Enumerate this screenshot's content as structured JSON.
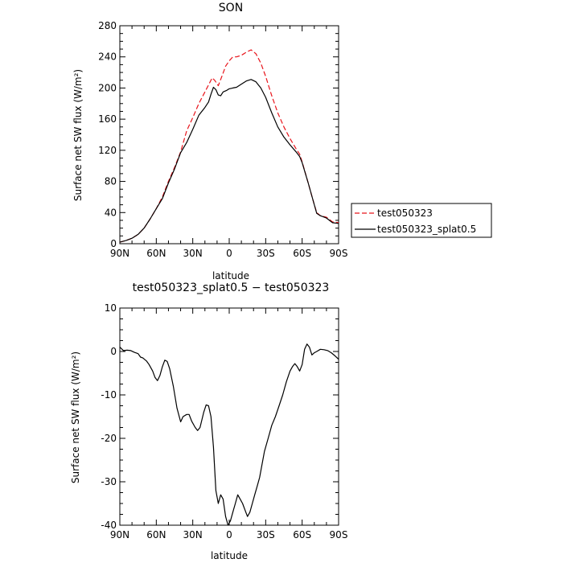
{
  "chart_data": [
    {
      "type": "line",
      "title": "SON",
      "xlabel": "latitude",
      "ylabel": "Surface net SW flux (W/m²)",
      "x_tick_labels": [
        "90N",
        "60N",
        "30N",
        "0",
        "30S",
        "60S",
        "90S"
      ],
      "x_tick_values": [
        90,
        60,
        30,
        0,
        -30,
        -60,
        -90
      ],
      "xlim": [
        90,
        -90
      ],
      "ylim": [
        0,
        280
      ],
      "y_ticks": [
        0,
        40,
        80,
        120,
        160,
        200,
        240,
        280
      ],
      "legend_position": "right",
      "series": [
        {
          "name": "test050323",
          "color": "#e8141b",
          "dash": "dashed",
          "points": [
            [
              90,
              2
            ],
            [
              85,
              4
            ],
            [
              80,
              7
            ],
            [
              75,
              12
            ],
            [
              70,
              20
            ],
            [
              65,
              32
            ],
            [
              60,
              45
            ],
            [
              55,
              60
            ],
            [
              50,
              80
            ],
            [
              45,
              98
            ],
            [
              40,
              118
            ],
            [
              35,
              145
            ],
            [
              30,
              162
            ],
            [
              25,
              180
            ],
            [
              20,
              195
            ],
            [
              16,
              207
            ],
            [
              14,
              213
            ],
            [
              12,
              210
            ],
            [
              9,
              203
            ],
            [
              6,
              215
            ],
            [
              3,
              228
            ],
            [
              0,
              235
            ],
            [
              -3,
              240
            ],
            [
              -6,
              240
            ],
            [
              -10,
              242
            ],
            [
              -14,
              246
            ],
            [
              -18,
              249
            ],
            [
              -22,
              244
            ],
            [
              -26,
              232
            ],
            [
              -30,
              215
            ],
            [
              -35,
              190
            ],
            [
              -40,
              168
            ],
            [
              -45,
              150
            ],
            [
              -50,
              135
            ],
            [
              -55,
              122
            ],
            [
              -58,
              115
            ],
            [
              -60,
              105
            ],
            [
              -65,
              78
            ],
            [
              -70,
              50
            ],
            [
              -72,
              40
            ],
            [
              -75,
              36
            ],
            [
              -80,
              34
            ],
            [
              -85,
              28
            ],
            [
              -90,
              27
            ]
          ]
        },
        {
          "name": "test050323_splat0.5",
          "color": "#000000",
          "dash": "solid",
          "points": [
            [
              90,
              2
            ],
            [
              85,
              4
            ],
            [
              80,
              7
            ],
            [
              75,
              12
            ],
            [
              70,
              20
            ],
            [
              65,
              32
            ],
            [
              60,
              45
            ],
            [
              55,
              58
            ],
            [
              50,
              78
            ],
            [
              45,
              96
            ],
            [
              40,
              117
            ],
            [
              35,
              130
            ],
            [
              30,
              147
            ],
            [
              25,
              165
            ],
            [
              20,
              175
            ],
            [
              17,
              182
            ],
            [
              15,
              192
            ],
            [
              13,
              201
            ],
            [
              11,
              198
            ],
            [
              9,
              191
            ],
            [
              7,
              190
            ],
            [
              5,
              195
            ],
            [
              2,
              197
            ],
            [
              0,
              199
            ],
            [
              -3,
              200
            ],
            [
              -6,
              201
            ],
            [
              -10,
              205
            ],
            [
              -14,
              209
            ],
            [
              -18,
              211
            ],
            [
              -22,
              208
            ],
            [
              -26,
              200
            ],
            [
              -30,
              188
            ],
            [
              -35,
              168
            ],
            [
              -40,
              150
            ],
            [
              -45,
              137
            ],
            [
              -50,
              127
            ],
            [
              -55,
              118
            ],
            [
              -58,
              112
            ],
            [
              -60,
              104
            ],
            [
              -65,
              78
            ],
            [
              -70,
              50
            ],
            [
              -72,
              39
            ],
            [
              -75,
              36
            ],
            [
              -80,
              33
            ],
            [
              -85,
              27
            ],
            [
              -90,
              26
            ]
          ]
        }
      ]
    },
    {
      "type": "line",
      "title": "test050323_splat0.5 − test050323",
      "xlabel": "latitude",
      "ylabel": "Surface net SW flux (W/m²)",
      "x_tick_labels": [
        "90N",
        "60N",
        "30N",
        "0",
        "30S",
        "60S",
        "90S"
      ],
      "x_tick_values": [
        90,
        60,
        30,
        0,
        -30,
        -60,
        -90
      ],
      "xlim": [
        90,
        -90
      ],
      "ylim": [
        -40,
        10
      ],
      "y_ticks": [
        -40,
        -30,
        -20,
        -10,
        0,
        10
      ],
      "series": [
        {
          "color": "#000000",
          "dash": "solid",
          "points": [
            [
              90,
              1
            ],
            [
              87,
              0.2
            ],
            [
              84,
              0.3
            ],
            [
              81,
              0.2
            ],
            [
              78,
              -0.2
            ],
            [
              75,
              -0.5
            ],
            [
              73,
              -1.3
            ],
            [
              71,
              -1.5
            ],
            [
              68,
              -2.2
            ],
            [
              66,
              -3
            ],
            [
              63,
              -4.5
            ],
            [
              61,
              -6
            ],
            [
              59,
              -6.7
            ],
            [
              57,
              -5.5
            ],
            [
              55,
              -3.5
            ],
            [
              53,
              -2
            ],
            [
              51,
              -2.3
            ],
            [
              49,
              -4
            ],
            [
              46,
              -8
            ],
            [
              43,
              -13
            ],
            [
              40,
              -16.2
            ],
            [
              38,
              -15
            ],
            [
              35,
              -14.5
            ],
            [
              33,
              -14.5
            ],
            [
              31,
              -16
            ],
            [
              28,
              -17.5
            ],
            [
              26,
              -18.2
            ],
            [
              24,
              -17.5
            ],
            [
              21,
              -14
            ],
            [
              19,
              -12.3
            ],
            [
              17,
              -12.5
            ],
            [
              15,
              -15
            ],
            [
              13,
              -22
            ],
            [
              11,
              -32
            ],
            [
              9,
              -35
            ],
            [
              7,
              -33
            ],
            [
              5,
              -34
            ],
            [
              3,
              -38
            ],
            [
              1,
              -40
            ],
            [
              -1,
              -39
            ],
            [
              -3,
              -37
            ],
            [
              -5,
              -35
            ],
            [
              -7,
              -33
            ],
            [
              -9,
              -34
            ],
            [
              -11,
              -35
            ],
            [
              -13,
              -36.5
            ],
            [
              -15,
              -38
            ],
            [
              -17,
              -37
            ],
            [
              -19,
              -35
            ],
            [
              -21,
              -33
            ],
            [
              -23,
              -31
            ],
            [
              -25,
              -29
            ],
            [
              -27,
              -26
            ],
            [
              -29,
              -23
            ],
            [
              -32,
              -20
            ],
            [
              -35,
              -17
            ],
            [
              -38,
              -15
            ],
            [
              -41,
              -12.5
            ],
            [
              -44,
              -10
            ],
            [
              -47,
              -7
            ],
            [
              -50,
              -4.5
            ],
            [
              -52,
              -3.5
            ],
            [
              -54,
              -2.8
            ],
            [
              -56,
              -3.5
            ],
            [
              -58,
              -4.5
            ],
            [
              -60,
              -3
            ],
            [
              -62,
              0.5
            ],
            [
              -64,
              1.7
            ],
            [
              -66,
              1
            ],
            [
              -68,
              -0.8
            ],
            [
              -70,
              -0.3
            ],
            [
              -72,
              0
            ],
            [
              -75,
              0.5
            ],
            [
              -78,
              0.4
            ],
            [
              -81,
              0.2
            ],
            [
              -84,
              -0.3
            ],
            [
              -87,
              -1
            ],
            [
              -90,
              -1.8
            ]
          ]
        }
      ]
    }
  ]
}
